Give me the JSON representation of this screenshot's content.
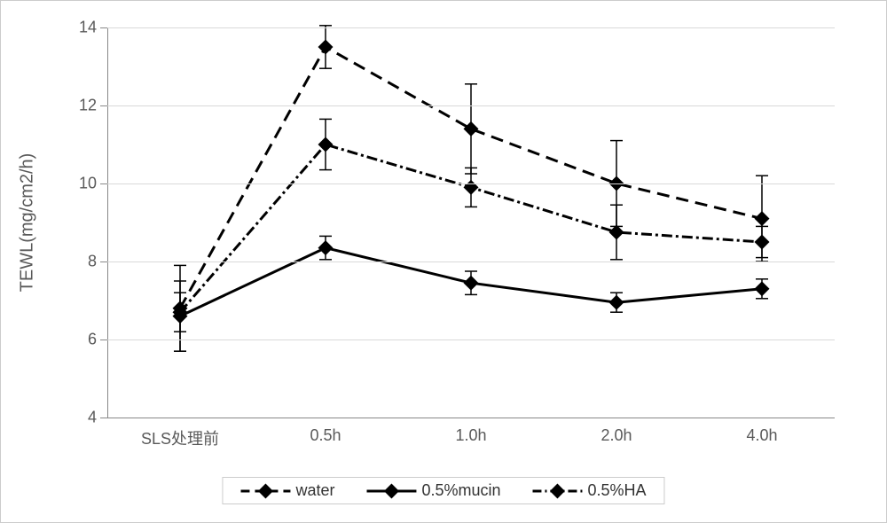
{
  "chart": {
    "type": "line",
    "background_color": "#ffffff",
    "grid_color": "#d9d9d9",
    "axis_color": "#888888",
    "label_color": "#595959",
    "label_fontsize": 18,
    "axis_title_fontsize": 20,
    "ylabel": "TEWL(mg/cm2/h)",
    "ylim": [
      4,
      14
    ],
    "ytick_step": 2,
    "yticks": [
      4,
      6,
      8,
      10,
      12,
      14
    ],
    "categories": [
      "SLS处理前",
      "0.5h",
      "1.0h",
      "2.0h",
      "4.0h"
    ],
    "marker": {
      "shape": "diamond",
      "size": 12,
      "fill": "#000000"
    },
    "error_cap_width": 14,
    "error_stroke_width": 1.5,
    "line_width": 3,
    "series": [
      {
        "name": "water",
        "dash": "14,8",
        "color": "#000000",
        "values": [
          6.8,
          13.5,
          11.4,
          10.0,
          9.1
        ],
        "errors": [
          1.1,
          0.55,
          1.15,
          1.1,
          1.1
        ]
      },
      {
        "name": "0.5%mucin",
        "dash": "none",
        "color": "#000000",
        "values": [
          6.6,
          8.35,
          7.45,
          6.95,
          7.3
        ],
        "errors": [
          0.9,
          0.3,
          0.3,
          0.25,
          0.25
        ]
      },
      {
        "name": "0.5%HA",
        "dash": "12,4,3,4",
        "color": "#000000",
        "values": [
          6.7,
          11.0,
          9.9,
          8.75,
          8.5
        ],
        "errors": [
          0.5,
          0.65,
          0.5,
          0.7,
          0.4
        ]
      }
    ],
    "legend": {
      "position": "bottom",
      "items": [
        "water",
        "0.5%mucin",
        "0.5%HA"
      ]
    }
  }
}
